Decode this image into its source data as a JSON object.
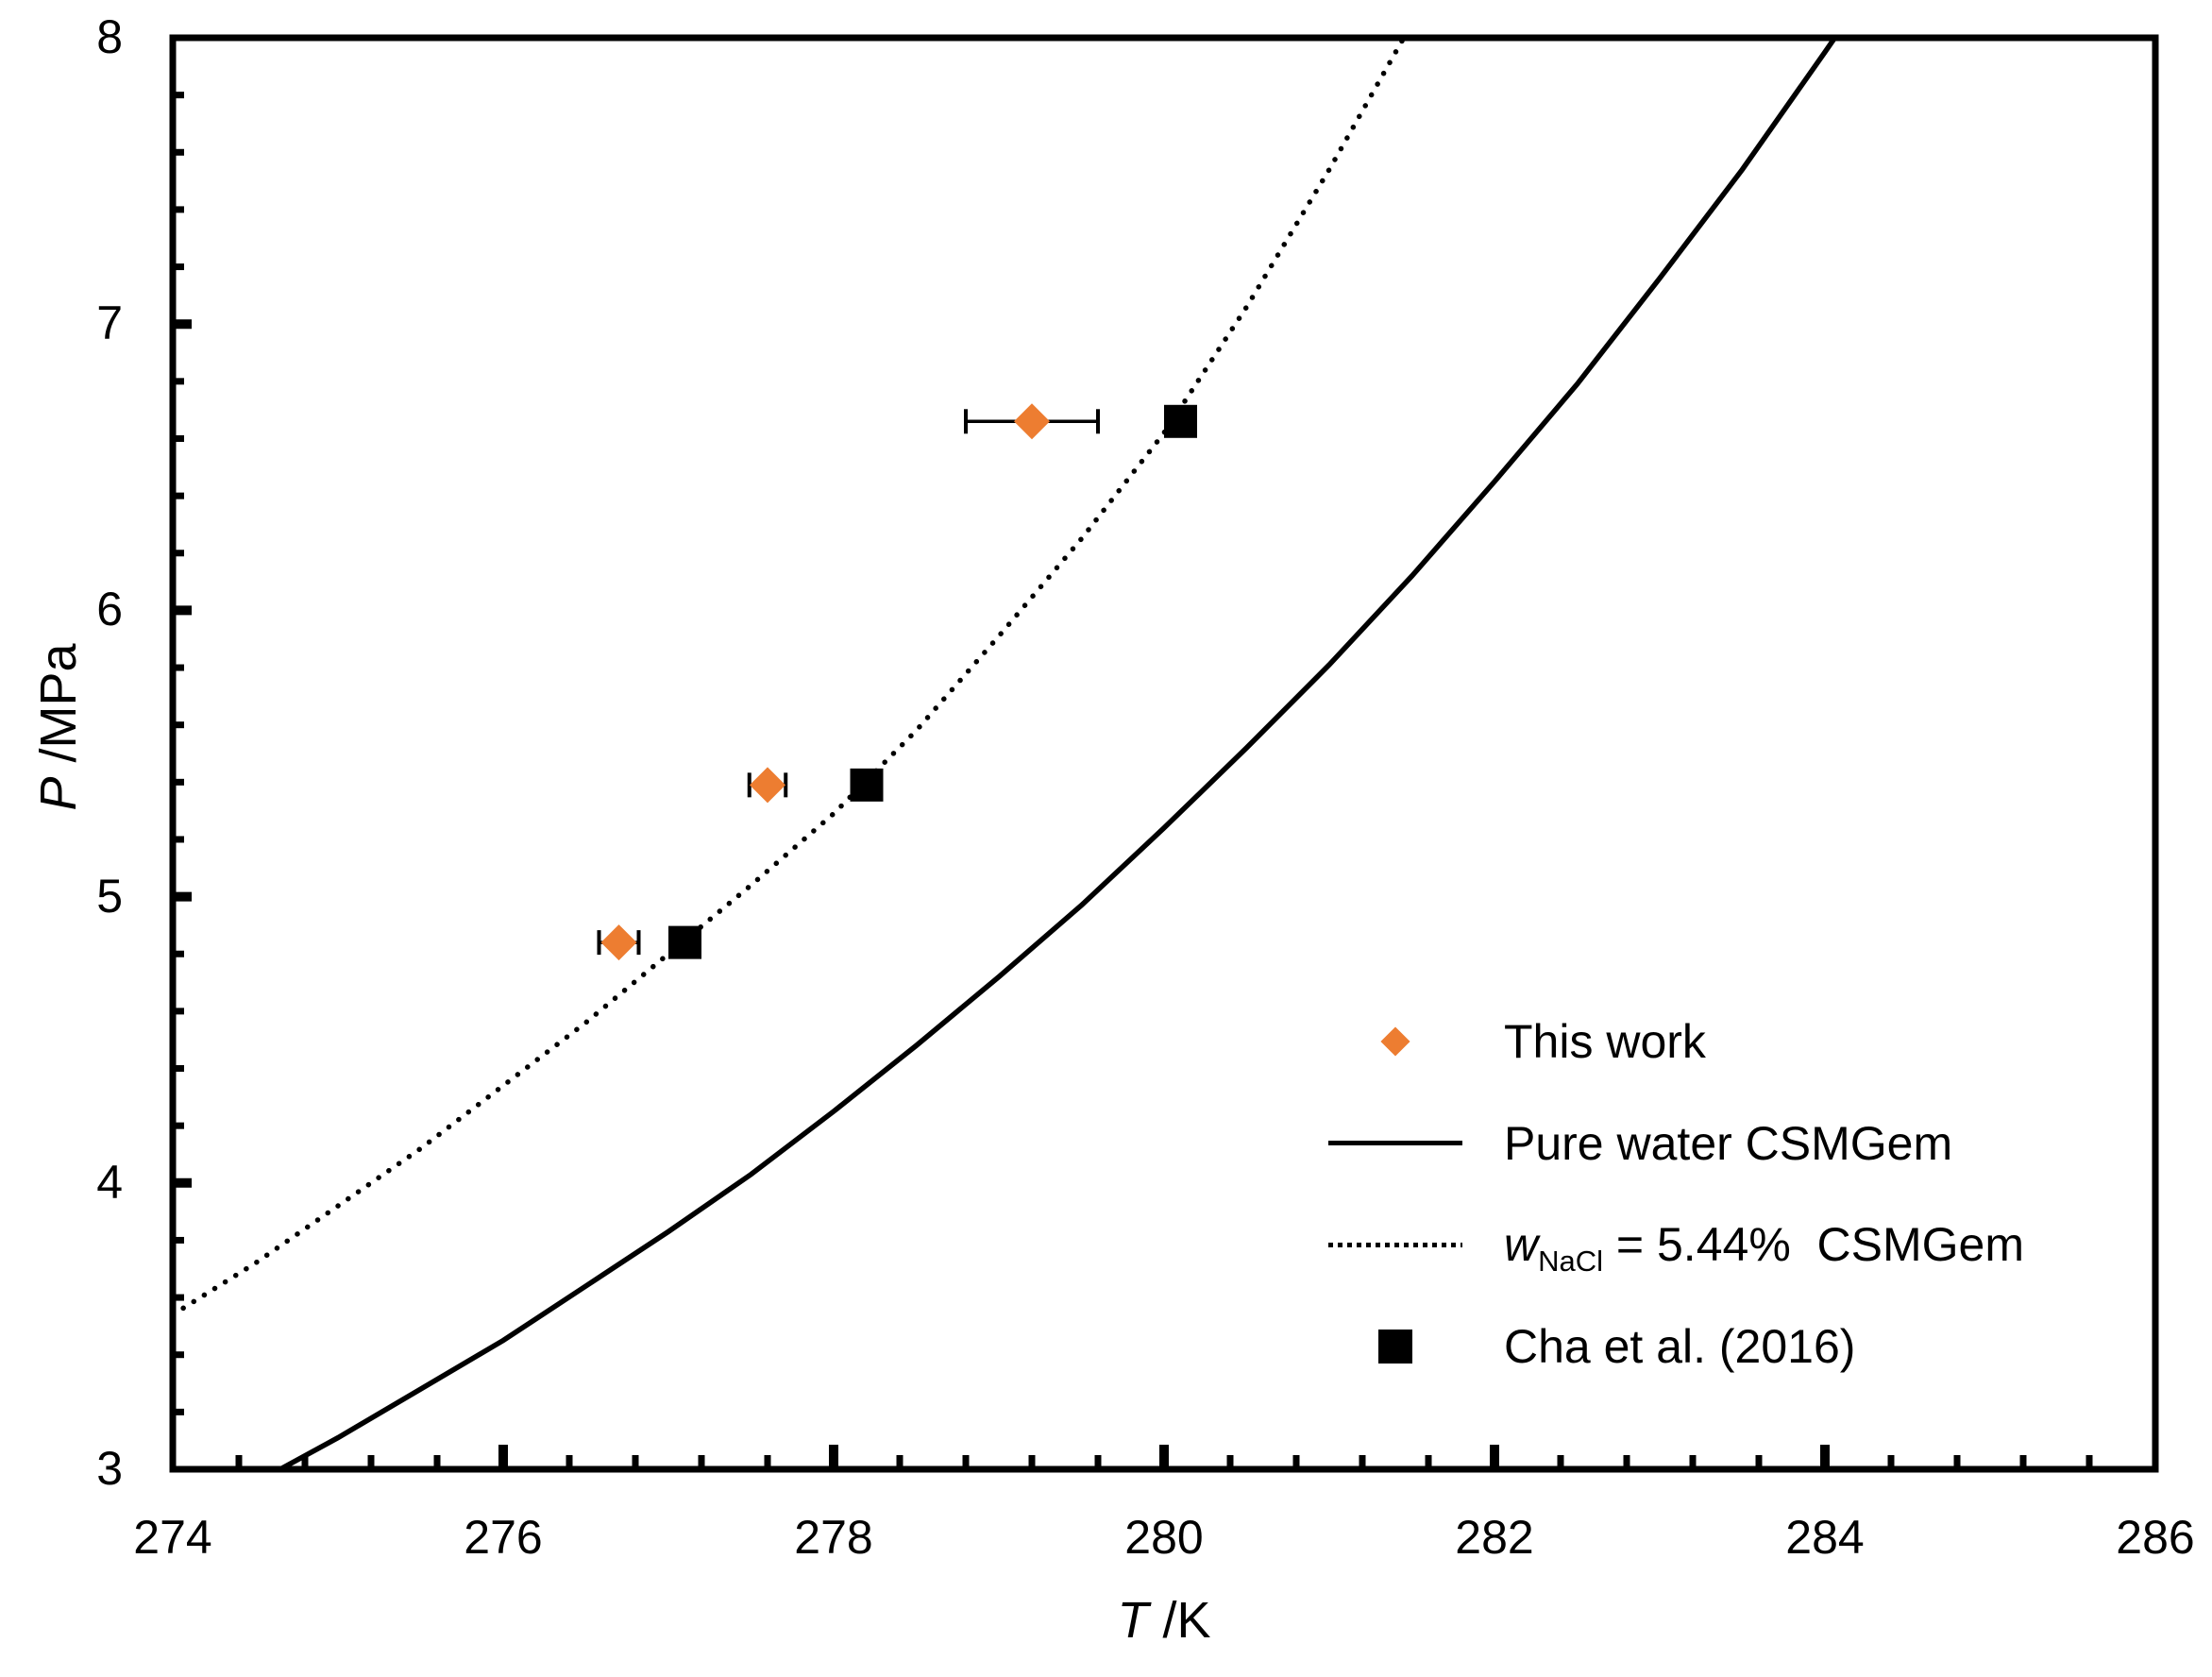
{
  "figure": {
    "background": "#ffffff",
    "ink": "#000000",
    "accent_orange": "#ED7D31"
  },
  "axes": {
    "x": {
      "title_italic": "T",
      "title_rest": " /K",
      "min": 274,
      "max": 286,
      "major_step": 2,
      "minor_step": 0.4,
      "tick_labels": [
        "274",
        "276",
        "278",
        "280",
        "282",
        "284",
        "286"
      ]
    },
    "y": {
      "title_italic": "P",
      "title_rest": " /MPa",
      "min": 3,
      "max": 8,
      "major_step": 1,
      "minor_step": 0.2,
      "tick_labels": [
        "3",
        "4",
        "5",
        "6",
        "7",
        "8"
      ]
    }
  },
  "legend": {
    "items": [
      {
        "marker": "diamond",
        "color": "#ED7D31",
        "label": "This work"
      },
      {
        "marker": "solid-line",
        "color": "#000000",
        "label": "Pure water CSMGem"
      },
      {
        "marker": "dotted-line",
        "color": "#000000",
        "label_parts": {
          "italic": "w",
          "sub": "NaCl",
          "rest": " = 5.44%  CSMGem"
        }
      },
      {
        "marker": "square",
        "color": "#000000",
        "label": "Cha et al. (2016)"
      }
    ]
  },
  "chart_data": {
    "type": "scatter",
    "title": "",
    "xlabel": "T /K",
    "ylabel": "P /MPa",
    "xlim": [
      274,
      286
    ],
    "ylim": [
      3,
      8
    ],
    "grid": false,
    "legend_position": "inside lower right",
    "series": [
      {
        "name": "This work",
        "kind": "points",
        "marker": "diamond",
        "color": "#ED7D31",
        "points": [
          {
            "T": 276.7,
            "P": 4.84,
            "T_err": 0.12
          },
          {
            "T": 277.6,
            "P": 5.39,
            "T_err": 0.11
          },
          {
            "T": 279.2,
            "P": 6.66,
            "T_err": 0.4
          }
        ]
      },
      {
        "name": "Cha et al. (2016)",
        "kind": "points",
        "marker": "square",
        "color": "#000000",
        "points": [
          {
            "T": 277.1,
            "P": 4.84
          },
          {
            "T": 278.2,
            "P": 5.39
          },
          {
            "T": 280.1,
            "P": 6.66
          }
        ]
      },
      {
        "name": "Pure water CSMGem",
        "kind": "curve",
        "style": "solid",
        "color": "#000000",
        "samples": [
          [
            274.65,
            3.0
          ],
          [
            275.0,
            3.11
          ],
          [
            275.5,
            3.28
          ],
          [
            276.0,
            3.45
          ],
          [
            276.5,
            3.64
          ],
          [
            277.0,
            3.83
          ],
          [
            277.5,
            4.03
          ],
          [
            278.0,
            4.25
          ],
          [
            278.5,
            4.48
          ],
          [
            279.0,
            4.72
          ],
          [
            279.5,
            4.97
          ],
          [
            280.0,
            5.24
          ],
          [
            280.5,
            5.52
          ],
          [
            281.0,
            5.81
          ],
          [
            281.5,
            6.12
          ],
          [
            282.0,
            6.45
          ],
          [
            282.5,
            6.79
          ],
          [
            283.0,
            7.16
          ],
          [
            283.5,
            7.54
          ],
          [
            284.0,
            7.95
          ],
          [
            284.12,
            8.05
          ]
        ]
      },
      {
        "name": "wNaCl = 5.44% CSMGem",
        "kind": "curve",
        "style": "dotted",
        "color": "#000000",
        "samples": [
          [
            274.0,
            3.54
          ],
          [
            274.5,
            3.72
          ],
          [
            275.0,
            3.92
          ],
          [
            275.5,
            4.12
          ],
          [
            276.0,
            4.34
          ],
          [
            276.5,
            4.56
          ],
          [
            277.0,
            4.8
          ],
          [
            277.5,
            5.04
          ],
          [
            278.0,
            5.29
          ],
          [
            278.5,
            5.58
          ],
          [
            279.0,
            5.91
          ],
          [
            279.5,
            6.25
          ],
          [
            280.0,
            6.62
          ],
          [
            280.5,
            7.06
          ],
          [
            281.0,
            7.54
          ],
          [
            281.5,
            8.05
          ]
        ]
      }
    ]
  }
}
